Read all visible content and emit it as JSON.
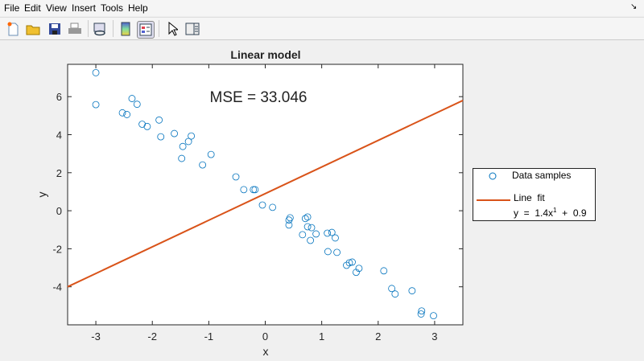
{
  "menu": [
    "File",
    "Edit",
    "View",
    "Insert",
    "Tools",
    "Help"
  ],
  "toolbar": [
    {
      "icon": "new-figure-icon"
    },
    {
      "icon": "open-icon"
    },
    {
      "icon": "save-icon"
    },
    {
      "icon": "print-icon"
    },
    {
      "icon": "link-icon"
    },
    {
      "icon": "colorbar-icon"
    },
    {
      "icon": "legend-icon",
      "active": true
    },
    {
      "icon": "pointer-icon"
    },
    {
      "icon": "property-inspector-icon"
    }
  ],
  "chart_data": {
    "type": "scatter",
    "title": "Linear model",
    "xlabel": "x",
    "ylabel": "y",
    "xlim": [
      -3.5,
      3.5
    ],
    "ylim": [
      -6,
      7.7
    ],
    "xticks": [
      -3,
      -2,
      -1,
      0,
      1,
      2,
      3
    ],
    "yticks": [
      -4,
      -2,
      0,
      2,
      4,
      6
    ],
    "annotation": "MSE = 33.046",
    "grid": false,
    "legend_position": "outside-right",
    "series": [
      {
        "name": "Data samples",
        "marker": "circle",
        "color": "#0072bd",
        "x": [
          -3,
          -3,
          -2.53,
          -2.45,
          -2.36,
          -2.27,
          -2.18,
          -2.09,
          -1.88,
          -1.85,
          -1.61,
          -1.48,
          -1.46,
          -1.36,
          -1.31,
          -1.11,
          -0.96,
          -0.52,
          -0.38,
          -0.21,
          -0.18,
          -0.05,
          0.13,
          0.42,
          0.44,
          0.42,
          0.66,
          0.71,
          0.75,
          0.75,
          0.82,
          0.8,
          0.9,
          1.11,
          1.1,
          1.18,
          1.24,
          1.27,
          1.44,
          1.49,
          1.54,
          1.61,
          1.66,
          2.1,
          2.24,
          2.3,
          2.6,
          2.77,
          2.76,
          2.98
        ],
        "y": [
          7.26,
          5.58,
          5.15,
          5.06,
          5.9,
          5.6,
          4.55,
          4.43,
          4.77,
          3.89,
          4.06,
          2.75,
          3.38,
          3.64,
          3.93,
          2.41,
          2.96,
          1.78,
          1.11,
          1.11,
          1.11,
          0.3,
          0.18,
          -0.49,
          -0.37,
          -0.75,
          -1.26,
          -0.41,
          -0.33,
          -0.84,
          -0.89,
          -1.56,
          -1.22,
          -2.15,
          -1.18,
          -1.14,
          -1.43,
          -2.19,
          -2.87,
          -2.74,
          -2.7,
          -3.24,
          -3.03,
          -3.16,
          -4.09,
          -4.38,
          -4.21,
          -5.27,
          -5.43,
          -5.52
        ]
      },
      {
        "name": "Line  fit",
        "type": "line",
        "color": "#d95319",
        "slope": 1.4,
        "intercept": 0.9
      }
    ],
    "legend": {
      "samples": "Data samples",
      "fit": "Line  fit",
      "eq_prefix": "y  =  1.4x",
      "eq_exp": "1",
      "eq_suffix": "  +  0.9"
    }
  }
}
